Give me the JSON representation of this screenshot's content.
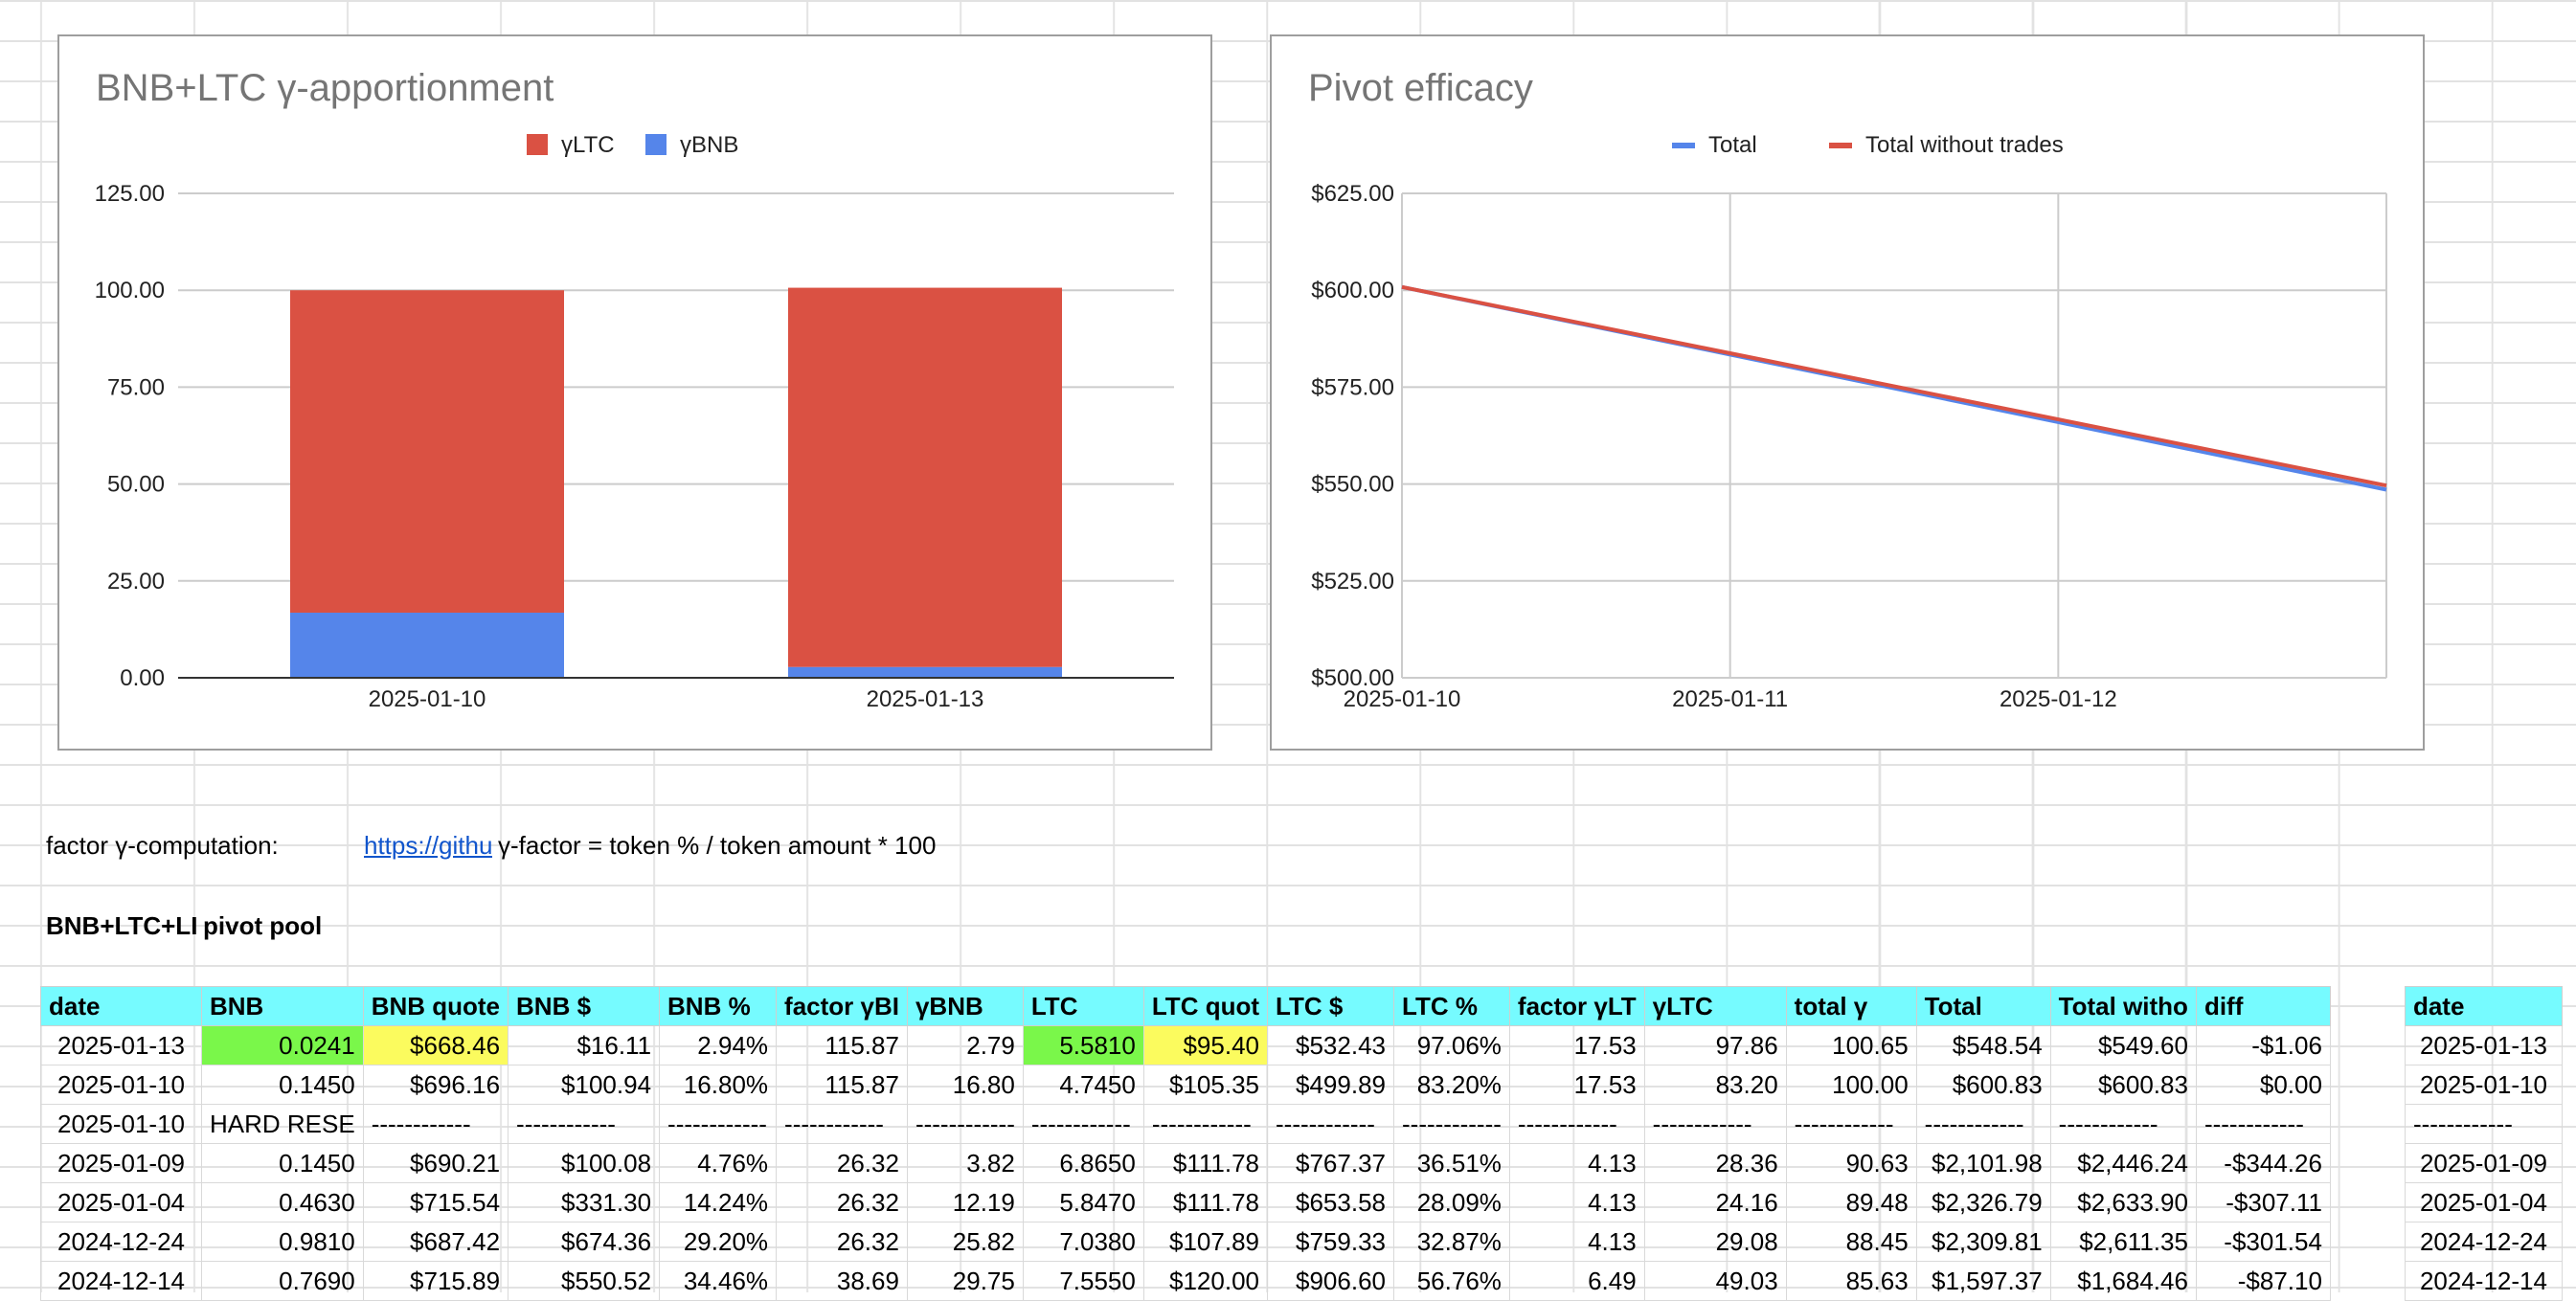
{
  "colors": {
    "header_bg": "#76fbff",
    "green": "#7af74a",
    "yellow": "#fbfb5e",
    "red": "#da5143",
    "blue": "#5585ea"
  },
  "chart_data": [
    {
      "type": "bar",
      "stacked": true,
      "title": "BNB+LTC γ-apportionment",
      "categories": [
        "2025-01-10",
        "2025-01-13"
      ],
      "series": [
        {
          "name": "γLTC",
          "color": "#da5143",
          "values": [
            83.2,
            97.86
          ]
        },
        {
          "name": "γBNB",
          "color": "#5585ea",
          "values": [
            16.8,
            2.79
          ]
        }
      ],
      "legend": [
        "γLTC",
        "γBNB"
      ],
      "ylim": [
        0,
        125
      ],
      "yticks": [
        "125.00",
        "100.00",
        "75.00",
        "50.00",
        "25.00",
        "0.00"
      ],
      "ytick_values": [
        125,
        100,
        75,
        50,
        25,
        0
      ],
      "grid": true
    },
    {
      "type": "line",
      "title": "Pivot efficacy",
      "x": [
        "2025-01-10",
        "2025-01-11",
        "2025-01-12",
        "2025-01-13"
      ],
      "xticks": [
        "2025-01-10",
        "2025-01-11",
        "2025-01-12"
      ],
      "series": [
        {
          "name": "Total",
          "color": "#5585ea",
          "values": [
            600.83,
            583.4,
            565.97,
            548.54
          ]
        },
        {
          "name": "Total without trades",
          "color": "#da5143",
          "values": [
            600.83,
            583.75,
            566.68,
            549.6
          ]
        }
      ],
      "ylim": [
        500,
        625
      ],
      "yticks": [
        "$625.00",
        "$600.00",
        "$575.00",
        "$550.00",
        "$525.00",
        "$500.00"
      ],
      "ytick_values": [
        625,
        600,
        575,
        550,
        525,
        500
      ],
      "grid": true
    }
  ],
  "notes": {
    "factor_label": "factor γ-computation:",
    "link_text": "https://githu",
    "formula": "γ-factor = token % / token amount * 100",
    "pool_label": "BNB+LTC+LI",
    "pool_suffix": "pivot pool"
  },
  "table": {
    "headers": [
      "date",
      "BNB",
      "BNB quote",
      "BNB $",
      "BNB %",
      "factor γBI",
      "γBNB",
      "LTC",
      "LTC quot",
      "LTC $",
      "LTC %",
      "factor γLT",
      "γLTC",
      "total γ",
      "Total",
      "Total witho",
      "diff"
    ],
    "right_header": "date",
    "rows": [
      [
        "2025-01-13",
        "0.0241",
        "$668.46",
        "$16.11",
        "2.94%",
        "115.87",
        "2.79",
        "5.5810",
        "$95.40",
        "$532.43",
        "97.06%",
        "17.53",
        "97.86",
        "100.65",
        "$548.54",
        "$549.60",
        "-$1.06",
        "2025-01-13"
      ],
      [
        "2025-01-10",
        "0.1450",
        "$696.16",
        "$100.94",
        "16.80%",
        "115.87",
        "16.80",
        "4.7450",
        "$105.35",
        "$499.89",
        "83.20%",
        "17.53",
        "83.20",
        "100.00",
        "$600.83",
        "$600.83",
        "$0.00",
        "2025-01-10"
      ],
      [
        "2025-01-10",
        "HARD RESE",
        "------------",
        "------------",
        "------------",
        "------------",
        "------------",
        "------------",
        "------------",
        "------------",
        "------------",
        "------------",
        "------------",
        "------------",
        "------------",
        "------------",
        "------------",
        "------------"
      ],
      [
        "2025-01-09",
        "0.1450",
        "$690.21",
        "$100.08",
        "4.76%",
        "26.32",
        "3.82",
        "6.8650",
        "$111.78",
        "$767.37",
        "36.51%",
        "4.13",
        "28.36",
        "90.63",
        "$2,101.98",
        "$2,446.24",
        "-$344.26",
        "2025-01-09"
      ],
      [
        "2025-01-04",
        "0.4630",
        "$715.54",
        "$331.30",
        "14.24%",
        "26.32",
        "12.19",
        "5.8470",
        "$111.78",
        "$653.58",
        "28.09%",
        "4.13",
        "24.16",
        "89.48",
        "$2,326.79",
        "$2,633.90",
        "-$307.11",
        "2025-01-04"
      ],
      [
        "2024-12-24",
        "0.9810",
        "$687.42",
        "$674.36",
        "29.20%",
        "26.32",
        "25.82",
        "7.0380",
        "$107.89",
        "$759.33",
        "32.87%",
        "4.13",
        "29.08",
        "88.45",
        "$2,309.81",
        "$2,611.35",
        "-$301.54",
        "2024-12-24"
      ],
      [
        "2024-12-14",
        "0.7690",
        "$715.89",
        "$550.52",
        "34.46%",
        "38.69",
        "29.75",
        "7.5550",
        "$120.00",
        "$906.60",
        "56.76%",
        "6.49",
        "49.03",
        "85.63",
        "$1,597.37",
        "$1,684.46",
        "-$87.10",
        "2024-12-14"
      ]
    ]
  }
}
